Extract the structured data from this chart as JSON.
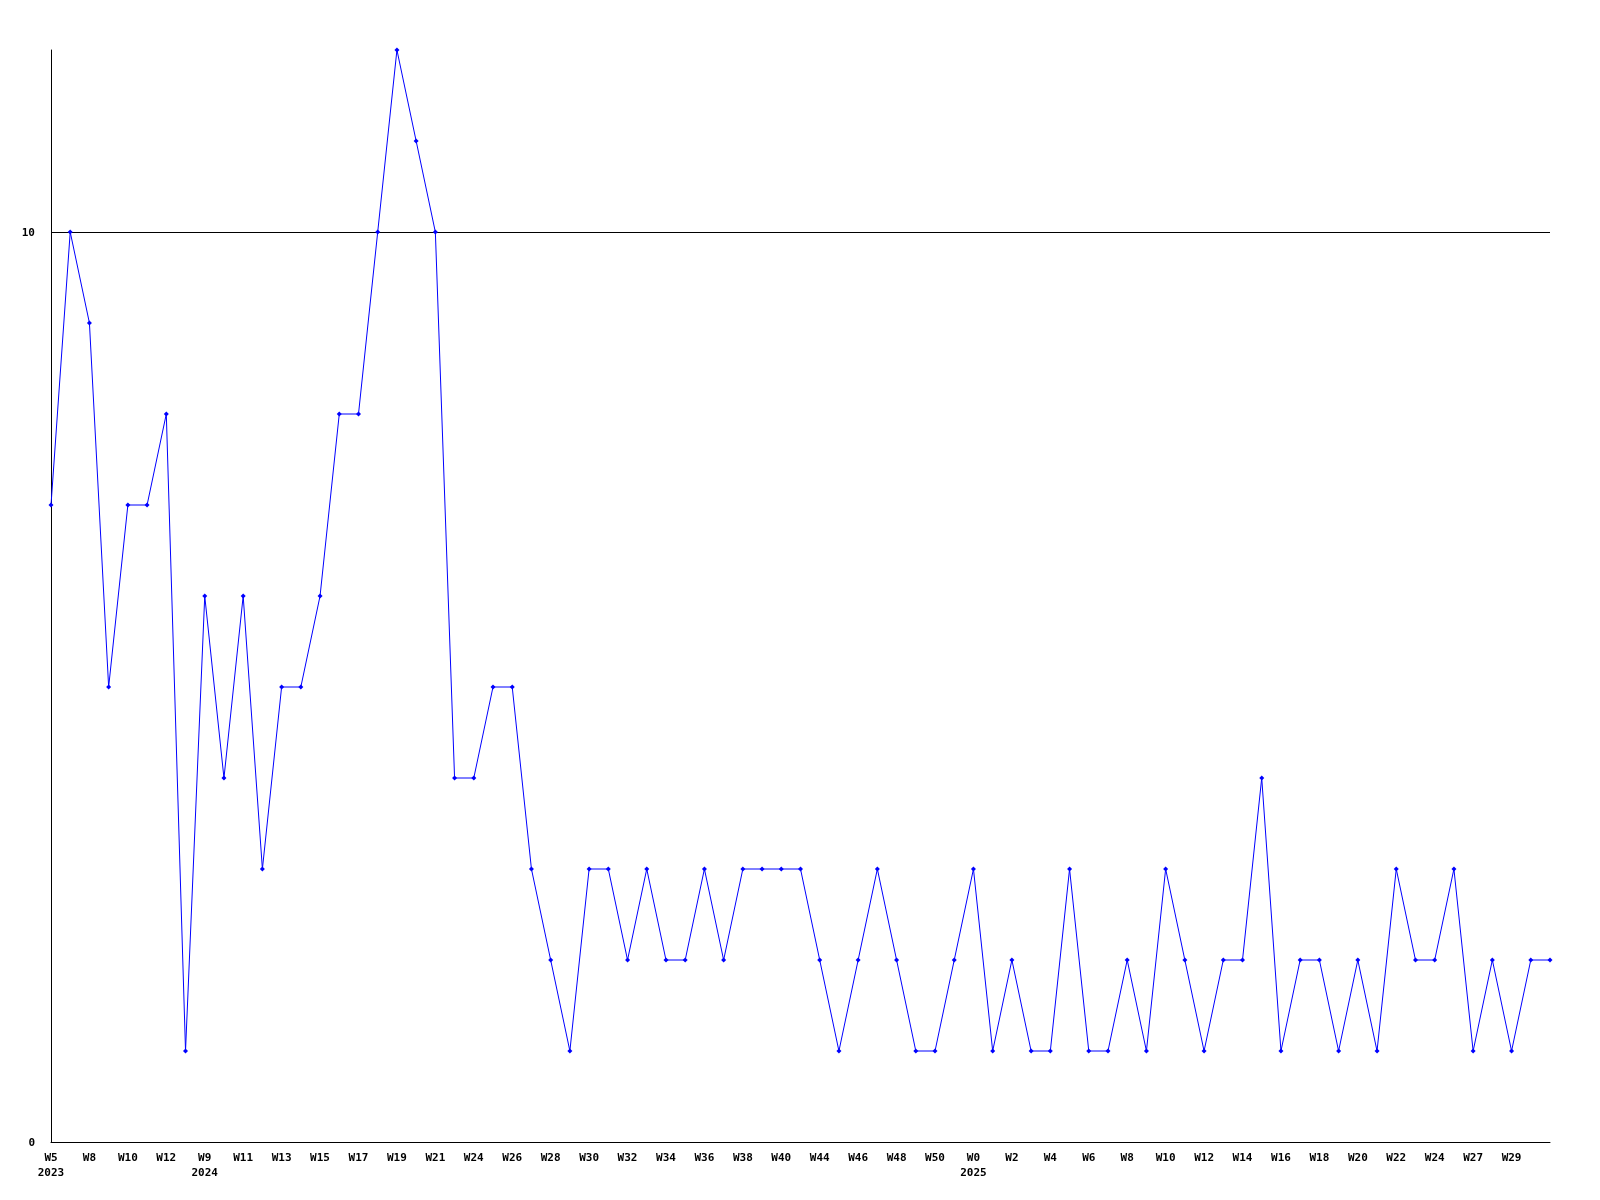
{
  "chart_data": {
    "type": "line",
    "categories": [
      "W5\n2023",
      null,
      "W8",
      null,
      "W10",
      null,
      "W12",
      null,
      "W9\n2024",
      null,
      "W11",
      null,
      "W13",
      null,
      "W15",
      null,
      "W17",
      null,
      "W19",
      null,
      "W21",
      null,
      "W24",
      null,
      "W26",
      null,
      "W28",
      null,
      "W30",
      null,
      "W32",
      null,
      "W34",
      null,
      "W36",
      null,
      "W38",
      null,
      "W40",
      null,
      "W44",
      null,
      "W46",
      null,
      "W48",
      null,
      "W50",
      null,
      "W0\n2025",
      null,
      "W2",
      null,
      "W4",
      null,
      "W6",
      null,
      "W8",
      null,
      "W10",
      null,
      "W12",
      null,
      "W14",
      null,
      "W16",
      null,
      "W18",
      null,
      "W20",
      null,
      "W22",
      null,
      "W24",
      null,
      "W27",
      null,
      "W29",
      null,
      null
    ],
    "series": [
      {
        "color": "#0000ff",
        "values": [
          7,
          10,
          9,
          5,
          7,
          7,
          8,
          1,
          6,
          4,
          6,
          3,
          5,
          5,
          6,
          8,
          8,
          10,
          12,
          11,
          10,
          4,
          4,
          5,
          5,
          3,
          2,
          1,
          3,
          3,
          2,
          3,
          2,
          2,
          3,
          2,
          3,
          3,
          3,
          3,
          2,
          1,
          2,
          3,
          2,
          1,
          1,
          2,
          3,
          1,
          2,
          1,
          1,
          3,
          1,
          1,
          2,
          1,
          3,
          2,
          1,
          2,
          2,
          4,
          1,
          2,
          2,
          1,
          2,
          1,
          3,
          2,
          2,
          3,
          1,
          2,
          1,
          2,
          2
        ]
      }
    ],
    "ylim": [
      0,
      12
    ],
    "yticks": [
      0,
      10
    ],
    "grid": "y",
    "marker": "diamond",
    "line_style": "solid"
  }
}
